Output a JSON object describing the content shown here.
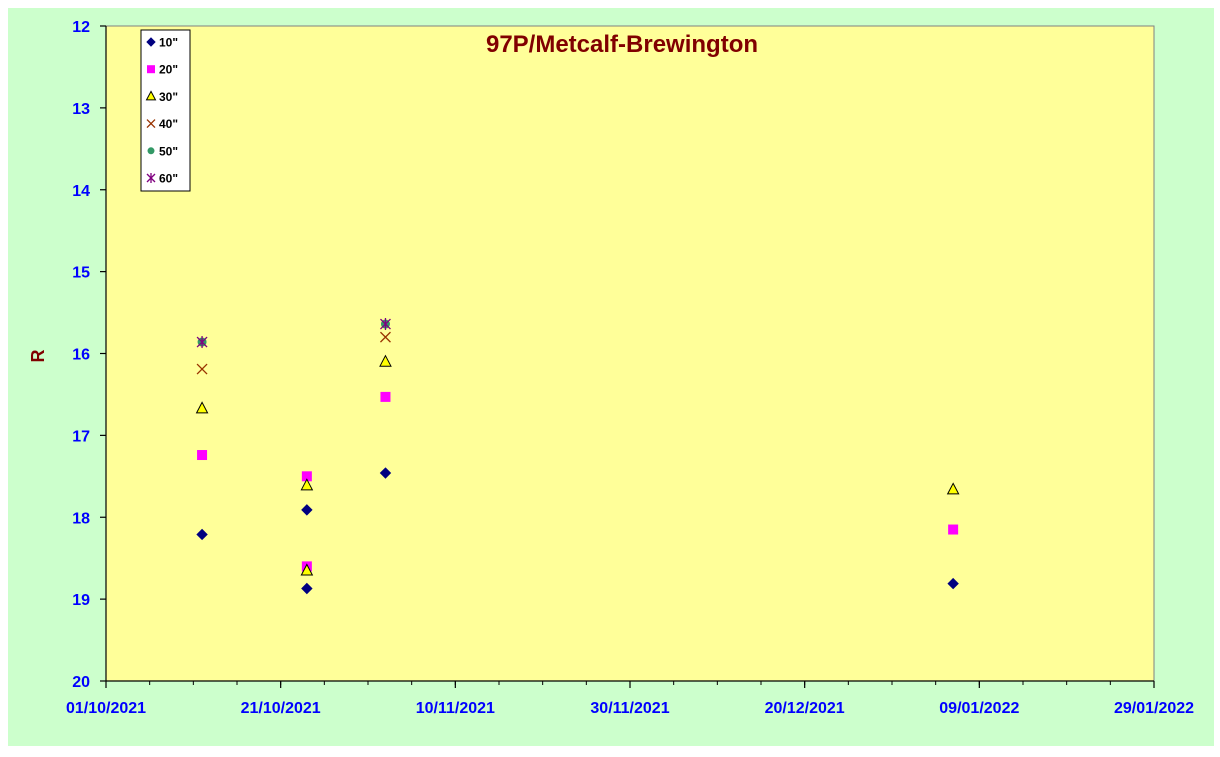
{
  "chart_data": {
    "type": "scatter",
    "title": "97P/Metcalf-Brewington",
    "xlabel": "",
    "ylabel": "R",
    "x_axis": {
      "type": "date",
      "range": [
        "01/10/2021",
        "29/01/2022"
      ],
      "tick_labels": [
        "01/10/2021",
        "21/10/2021",
        "10/11/2021",
        "30/11/2021",
        "20/12/2021",
        "09/01/2022",
        "29/01/2022"
      ],
      "minor_tick_step_days": 5
    },
    "y_axis": {
      "reversed": true,
      "range": [
        12,
        20
      ],
      "tick_labels": [
        "12",
        "13",
        "14",
        "15",
        "16",
        "17",
        "18",
        "19",
        "20"
      ]
    },
    "grid": false,
    "legend_position": "top-left",
    "colors": {
      "outer_background": "#ccffcc",
      "plot_background": "#ffff99",
      "title": "#800000",
      "tick_text": "#0000ff"
    },
    "series": [
      {
        "name": "10\"",
        "marker": "diamond",
        "color": "#000080",
        "points": [
          [
            "12/10/2021",
            18.21
          ],
          [
            "24/10/2021",
            17.91
          ],
          [
            "24/10/2021",
            18.87
          ],
          [
            "02/11/2021",
            17.46
          ],
          [
            "06/01/2022",
            18.81
          ]
        ]
      },
      {
        "name": "20\"",
        "marker": "square",
        "color": "#ff00ff",
        "points": [
          [
            "12/10/2021",
            17.24
          ],
          [
            "24/10/2021",
            17.5
          ],
          [
            "24/10/2021",
            18.6
          ],
          [
            "02/11/2021",
            16.53
          ],
          [
            "06/01/2022",
            18.15
          ]
        ]
      },
      {
        "name": "30\"",
        "marker": "triangle",
        "color": "#ffff00",
        "points": [
          [
            "12/10/2021",
            16.67
          ],
          [
            "24/10/2021",
            17.61
          ],
          [
            "24/10/2021",
            18.65
          ],
          [
            "02/11/2021",
            16.1
          ],
          [
            "06/01/2022",
            17.66
          ]
        ]
      },
      {
        "name": "40\"",
        "marker": "x",
        "color": "#993300",
        "points": [
          [
            "12/10/2021",
            16.19
          ],
          [
            "02/11/2021",
            15.8
          ]
        ]
      },
      {
        "name": "50\"",
        "marker": "circle",
        "color": "#339966",
        "points": [
          [
            "12/10/2021",
            15.86
          ],
          [
            "02/11/2021",
            15.64
          ]
        ]
      },
      {
        "name": "60\"",
        "marker": "star",
        "color": "#800080",
        "points": [
          [
            "12/10/2021",
            15.86
          ],
          [
            "02/11/2021",
            15.64
          ]
        ]
      }
    ]
  }
}
